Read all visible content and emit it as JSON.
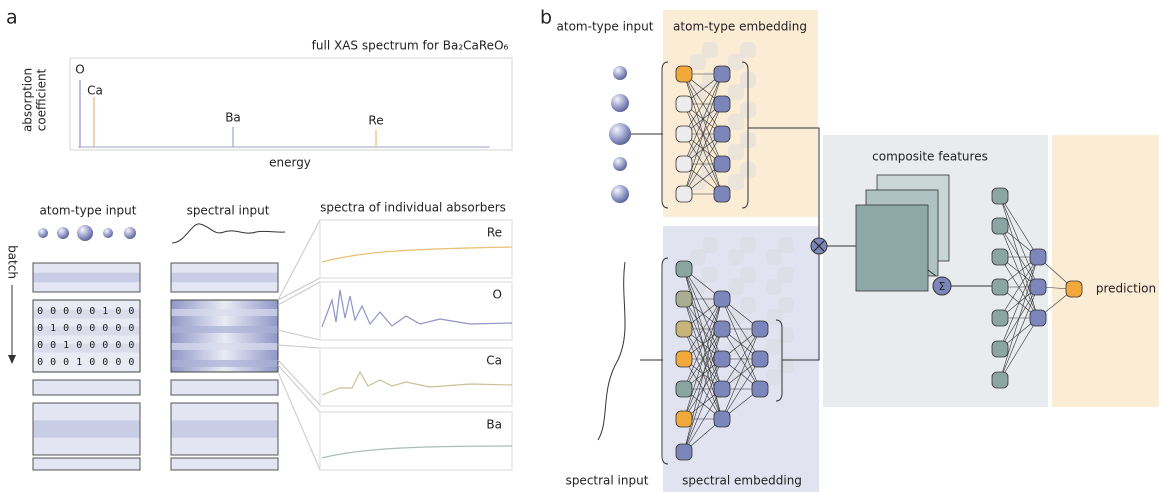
{
  "panel_a": {
    "label": "a",
    "spectrum": {
      "title": "full XAS spectrum for Ba₂CaReO₆",
      "y_label": [
        "absorption",
        "coefficient"
      ],
      "x_label": "energy",
      "peaks": [
        "O",
        "Ca",
        "Ba",
        "Re"
      ]
    },
    "atom_type_input": "atom-type input",
    "spectral_input": "spectral input",
    "absorbers_title": "spectra of individual absorbers",
    "batch": "batch",
    "one_hot": [
      "0 0 0 0 0 1 0 0",
      "0 1 0 0 0 0 0 0",
      "0 0 1 0 0 0 0 0",
      "0 0 0 1 0 0 0 0"
    ],
    "absorbers": [
      "Re",
      "O",
      "Ca",
      "Ba"
    ]
  },
  "panel_b": {
    "label": "b",
    "atom_type_input": "atom-type input",
    "atom_type_embedding": "atom-type embedding",
    "composite_features": "composite features",
    "sigma": "Σ",
    "spectral_input": "spectral input",
    "spectral_embedding": "spectral embedding",
    "prediction": "prediction"
  }
}
